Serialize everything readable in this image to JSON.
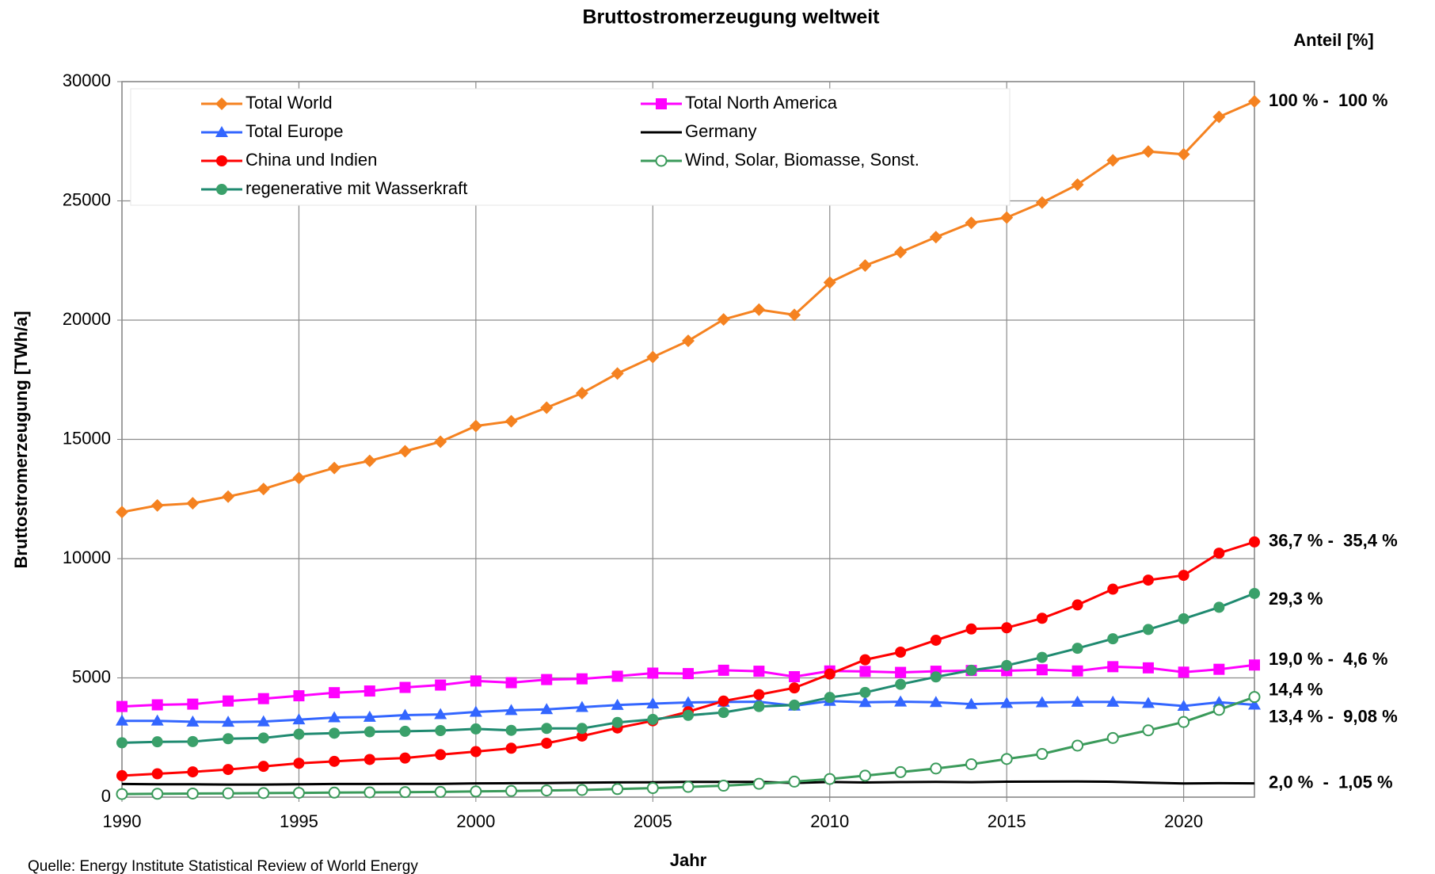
{
  "chart_data": {
    "type": "line",
    "title": "Bruttostromerzeugung weltweit",
    "xlabel": "Jahr",
    "ylabel": "Bruttostromerzeugung [TWh/a]",
    "source": "Quelle: Energy Institute Statistical Review of World Energy",
    "share_heading": "Anteil [%]",
    "share_heading_color": "#f58220",
    "x": [
      1990,
      1991,
      1992,
      1993,
      1994,
      1995,
      1996,
      1997,
      1998,
      1999,
      2000,
      2001,
      2002,
      2003,
      2004,
      2005,
      2006,
      2007,
      2008,
      2009,
      2010,
      2011,
      2012,
      2013,
      2014,
      2015,
      2016,
      2017,
      2018,
      2019,
      2020,
      2021,
      2022
    ],
    "xlim": [
      1990,
      2022
    ],
    "xticks": [
      1990,
      1995,
      2000,
      2005,
      2010,
      2015,
      2020
    ],
    "ylim": [
      0,
      30000
    ],
    "yticks": [
      0,
      5000,
      10000,
      15000,
      20000,
      25000,
      30000
    ],
    "grid": true,
    "legend": "upper left",
    "series": [
      {
        "name": "Total World",
        "color": "#f58220",
        "marker": "diamond",
        "end_label": "100 % -  100 %",
        "values": [
          11950,
          12230,
          12320,
          12600,
          12920,
          13380,
          13800,
          14100,
          14500,
          14900,
          15560,
          15760,
          16330,
          16940,
          17760,
          18450,
          19130,
          20030,
          20440,
          20220,
          21580,
          22290,
          22850,
          23480,
          24080,
          24300,
          24930,
          25680,
          26700,
          27070,
          26950,
          28520,
          29170
        ]
      },
      {
        "name": "Total North America",
        "color": "#ff00ff",
        "marker": "square",
        "end_label": "19,0 % -  4,6 %",
        "values": [
          3800,
          3870,
          3900,
          4030,
          4130,
          4250,
          4380,
          4450,
          4600,
          4700,
          4870,
          4800,
          4930,
          4960,
          5070,
          5200,
          5180,
          5320,
          5280,
          5050,
          5290,
          5270,
          5230,
          5280,
          5310,
          5300,
          5340,
          5290,
          5470,
          5420,
          5240,
          5360,
          5540
        ]
      },
      {
        "name": "Total Europe",
        "color": "#3366ff",
        "marker": "triangle",
        "end_label": "13,4 % -  9,08 %",
        "values": [
          3200,
          3200,
          3160,
          3150,
          3170,
          3250,
          3340,
          3360,
          3440,
          3470,
          3570,
          3640,
          3680,
          3770,
          3860,
          3920,
          3970,
          3990,
          4000,
          3830,
          4030,
          3980,
          4000,
          3980,
          3900,
          3940,
          3970,
          3990,
          3990,
          3940,
          3820,
          3980,
          3870
        ]
      },
      {
        "name": "Germany",
        "color": "#000000",
        "marker": "none",
        "end_label": "2,0 %  -  1,05 %",
        "values": [
          550,
          540,
          537,
          527,
          528,
          537,
          552,
          552,
          557,
          556,
          577,
          586,
          587,
          609,
          617,
          620,
          640,
          637,
          640,
          596,
          633,
          613,
          630,
          639,
          627,
          647,
          650,
          654,
          643,
          609,
          573,
          585,
          577
        ]
      },
      {
        "name": "China und Indien",
        "color": "#ff0000",
        "marker": "circle",
        "end_label": "36,7 % -  35,4 %",
        "values": [
          900,
          980,
          1060,
          1160,
          1290,
          1420,
          1500,
          1580,
          1640,
          1780,
          1910,
          2050,
          2260,
          2560,
          2900,
          3200,
          3580,
          4030,
          4300,
          4580,
          5160,
          5760,
          6080,
          6580,
          7050,
          7100,
          7500,
          8060,
          8720,
          9100,
          9300,
          10230,
          10700
        ]
      },
      {
        "name": "Wind, Solar, Biomasse, Sonst.",
        "color": "#3a9a5a",
        "marker": "circle-open",
        "end_label": "14,4 %",
        "values": [
          130,
          140,
          150,
          160,
          170,
          180,
          190,
          200,
          210,
          220,
          240,
          260,
          280,
          300,
          340,
          380,
          430,
          480,
          560,
          650,
          760,
          900,
          1050,
          1200,
          1380,
          1600,
          1810,
          2160,
          2480,
          2800,
          3150,
          3660,
          4200
        ]
      },
      {
        "name": "regenerative mit Wasserkraft",
        "color": "#1f8a70",
        "marker": "circle",
        "end_label": "29,3 %",
        "values": [
          2280,
          2320,
          2330,
          2450,
          2480,
          2640,
          2680,
          2740,
          2760,
          2790,
          2860,
          2800,
          2880,
          2880,
          3130,
          3260,
          3430,
          3550,
          3800,
          3860,
          4180,
          4390,
          4730,
          5040,
          5320,
          5520,
          5860,
          6240,
          6640,
          7030,
          7480,
          7960,
          8540
        ]
      }
    ]
  }
}
